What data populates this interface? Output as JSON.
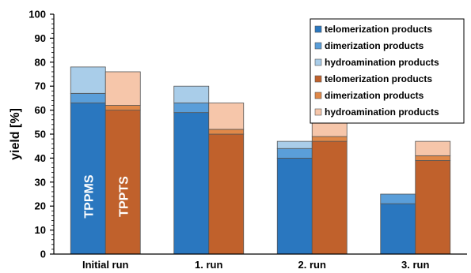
{
  "chart_data": {
    "type": "bar",
    "stacked": true,
    "categories": [
      "Initial run",
      "1. run",
      "2. run",
      "3. run"
    ],
    "ylabel": "yield [%]",
    "xlabel": "",
    "ylim": [
      0,
      100
    ],
    "yticks": [
      0,
      10,
      20,
      30,
      40,
      50,
      60,
      70,
      80,
      90,
      100
    ],
    "grid": false,
    "legend_position": "top-right",
    "groups": [
      {
        "name": "TPPMS",
        "series": [
          {
            "name": "telomerization products",
            "color": "#2a77bf",
            "values": [
              63,
              59,
              40,
              21
            ]
          },
          {
            "name": "dimerization products",
            "color": "#5a9ed9",
            "values": [
              4,
              4,
              4,
              4
            ]
          },
          {
            "name": "hydroamination products",
            "color": "#a9cde9",
            "values": [
              11,
              7,
              3,
              0
            ]
          }
        ]
      },
      {
        "name": "TPPTS",
        "series": [
          {
            "name": "telomerization products",
            "color": "#c0612c",
            "values": [
              60,
              50,
              47,
              39
            ]
          },
          {
            "name": "dimerization products",
            "color": "#e08848",
            "values": [
              2,
              2,
              2,
              2
            ]
          },
          {
            "name": "hydroamination products",
            "color": "#f6c6aa",
            "values": [
              14,
              11,
              7,
              6
            ]
          }
        ]
      }
    ],
    "bar_annotations": [
      {
        "group": 0,
        "category": 0,
        "text": "TPPMS"
      },
      {
        "group": 1,
        "category": 0,
        "text": "TPPTS"
      }
    ]
  }
}
